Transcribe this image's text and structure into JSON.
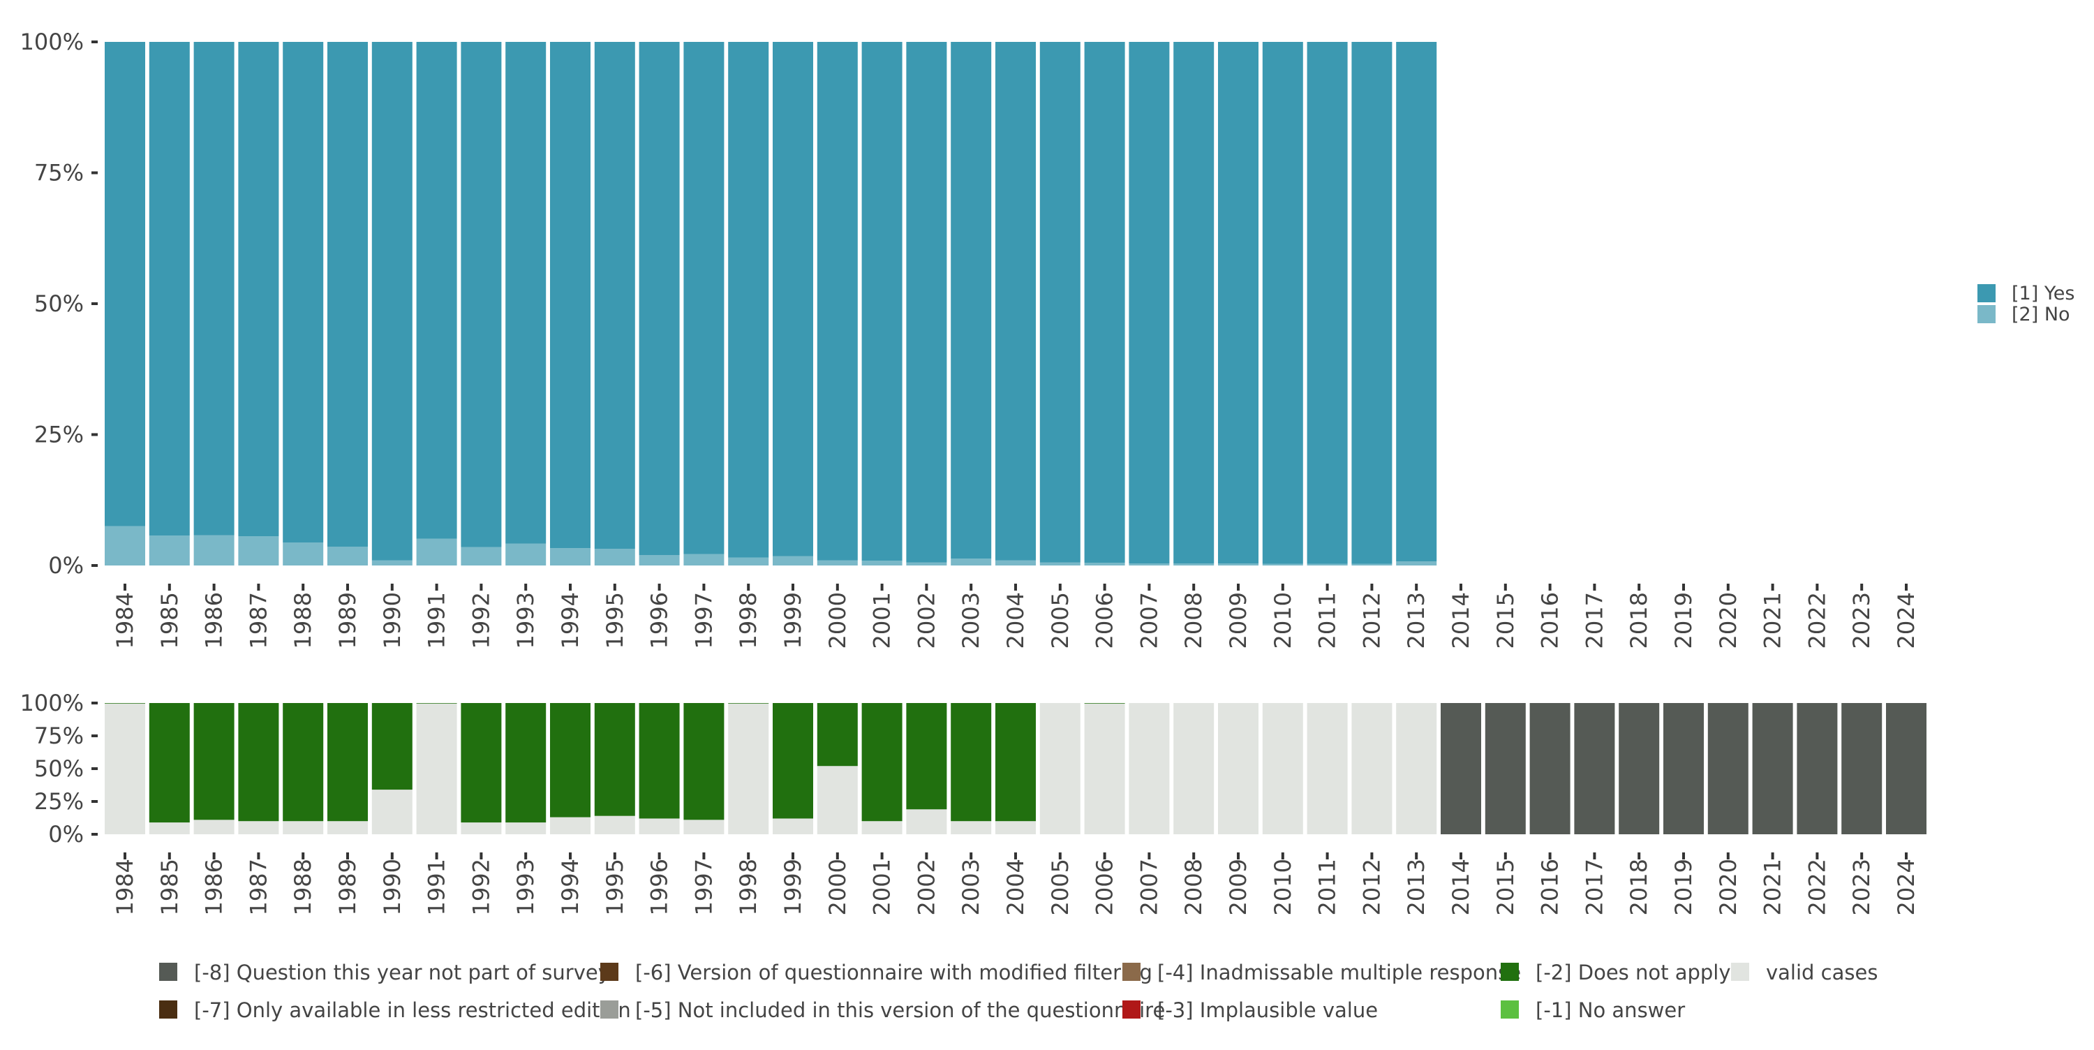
{
  "chart_data": [
    {
      "type": "bar",
      "stacked": true,
      "title": "",
      "xlabel": "",
      "ylabel": "",
      "ylim": [
        0,
        100
      ],
      "y_ticks": [
        "0%",
        "25%",
        "50%",
        "75%",
        "100%"
      ],
      "categories": [
        "1984",
        "1985",
        "1986",
        "1987",
        "1988",
        "1989",
        "1990",
        "1991",
        "1992",
        "1993",
        "1994",
        "1995",
        "1996",
        "1997",
        "1998",
        "1999",
        "2000",
        "2001",
        "2002",
        "2003",
        "2004",
        "2005",
        "2006",
        "2007",
        "2008",
        "2009",
        "2010",
        "2011",
        "2012",
        "2013",
        "2014",
        "2015",
        "2016",
        "2017",
        "2018",
        "2019",
        "2020",
        "2021",
        "2022",
        "2023",
        "2024"
      ],
      "series": [
        {
          "name": "[2] No",
          "color": "#7ab8c8",
          "values": [
            7.5,
            5.7,
            5.8,
            5.6,
            4.4,
            3.6,
            1.0,
            5.1,
            3.5,
            4.2,
            3.3,
            3.2,
            2.0,
            2.2,
            1.5,
            1.8,
            1.0,
            0.9,
            0.6,
            1.3,
            1.0,
            0.6,
            0.5,
            0.4,
            0.4,
            0.4,
            0.3,
            0.3,
            0.3,
            0.8,
            null,
            null,
            null,
            null,
            null,
            null,
            null,
            null,
            null,
            null,
            null
          ]
        },
        {
          "name": "[1] Yes",
          "color": "#3c99b1",
          "values": [
            92.5,
            94.3,
            94.2,
            94.4,
            95.6,
            96.4,
            99.0,
            94.9,
            96.5,
            95.8,
            96.7,
            96.8,
            98.0,
            97.8,
            98.5,
            98.2,
            99.0,
            99.1,
            99.4,
            98.7,
            99.0,
            99.4,
            99.5,
            99.6,
            99.6,
            99.6,
            99.7,
            99.7,
            99.7,
            99.2,
            null,
            null,
            null,
            null,
            null,
            null,
            null,
            null,
            null,
            null,
            null
          ]
        }
      ],
      "legend": {
        "position": "right",
        "items": [
          {
            "label": "[1] Yes",
            "color": "#3c99b1"
          },
          {
            "label": "[2] No",
            "color": "#7ab8c8"
          }
        ]
      }
    },
    {
      "type": "bar",
      "stacked": true,
      "title": "",
      "xlabel": "",
      "ylabel": "",
      "ylim": [
        0,
        100
      ],
      "y_ticks": [
        "0%",
        "25%",
        "50%",
        "75%",
        "100%"
      ],
      "categories": [
        "1984",
        "1985",
        "1986",
        "1987",
        "1988",
        "1989",
        "1990",
        "1991",
        "1992",
        "1993",
        "1994",
        "1995",
        "1996",
        "1997",
        "1998",
        "1999",
        "2000",
        "2001",
        "2002",
        "2003",
        "2004",
        "2005",
        "2006",
        "2007",
        "2008",
        "2009",
        "2010",
        "2011",
        "2012",
        "2013",
        "2014",
        "2015",
        "2016",
        "2017",
        "2018",
        "2019",
        "2020",
        "2021",
        "2022",
        "2023",
        "2024"
      ],
      "series": [
        {
          "name": "valid cases",
          "color": "#e1e4e0",
          "values": [
            99.6,
            9,
            11,
            10,
            10,
            10,
            34,
            99.6,
            9,
            9,
            13,
            14,
            12,
            11,
            99.6,
            12,
            52,
            10,
            19,
            10,
            10,
            100,
            99.6,
            100,
            100,
            100,
            100,
            100,
            100,
            100,
            0,
            0,
            0,
            0,
            0,
            0,
            0,
            0,
            0,
            0,
            0
          ]
        },
        {
          "name": "[-2] Does not apply",
          "color": "#21700f",
          "values": [
            0.4,
            91,
            89,
            90,
            90,
            90,
            66,
            0.4,
            91,
            91,
            87,
            86,
            88,
            89,
            0.4,
            88,
            48,
            90,
            81,
            90,
            90,
            0,
            0.4,
            0,
            0,
            0,
            0,
            0,
            0,
            0,
            0,
            0,
            0,
            0,
            0,
            0,
            0,
            0,
            0,
            0,
            0
          ]
        },
        {
          "name": "[-8] Question this year not part of survey",
          "color": "#555a55",
          "values": [
            0,
            0,
            0,
            0,
            0,
            0,
            0,
            0,
            0,
            0,
            0,
            0,
            0,
            0,
            0,
            0,
            0,
            0,
            0,
            0,
            0,
            0,
            0,
            0,
            0,
            0,
            0,
            0,
            0,
            0,
            100,
            100,
            100,
            100,
            100,
            100,
            100,
            100,
            100,
            100,
            100
          ]
        }
      ],
      "legend": {
        "position": "bottom",
        "items": [
          {
            "label": "[-8] Question this year not part of survey",
            "color": "#555a55"
          },
          {
            "label": "[-6] Version of questionnaire with modified filtering",
            "color": "#5c3a1a"
          },
          {
            "label": "[-4] Inadmissable multiple response",
            "color": "#8b6a4a"
          },
          {
            "label": "[-2] Does not apply",
            "color": "#21700f"
          },
          {
            "label": "valid cases",
            "color": "#e1e4e0"
          },
          {
            "label": "[-7] Only available in less restricted edition",
            "color": "#4a2e12"
          },
          {
            "label": "[-5] Not included in this version of the questionnaire",
            "color": "#9a9d98"
          },
          {
            "label": "[-3] Implausible value",
            "color": "#b01818"
          },
          {
            "label": "[-1] No answer",
            "color": "#5cc040"
          }
        ]
      }
    }
  ]
}
